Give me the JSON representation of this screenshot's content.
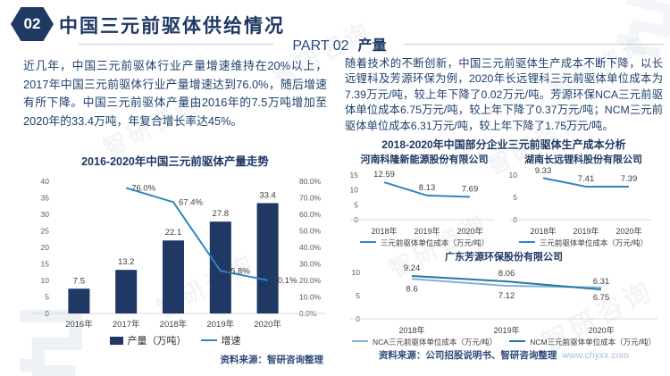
{
  "header": {
    "badge": "02",
    "title": "中国三元前驱体供给情况",
    "part_label": "PART 02",
    "part_topic": "产量"
  },
  "left": {
    "paragraph": "近几年，中国三元前驱体行业产量增速维持在20%以上，2017年中国三元前驱体行业产量增速达到76.0%，随后增速有所下降。中国三元前驱体产量由2016年的7.5万吨增加至2020年的33.4万吨，年复合增长率达45%。",
    "source": "资料来源：智研咨询整理"
  },
  "right": {
    "paragraph": "随着技术的不断创新，中国三元前驱体生产成本不断下降，以长远锂科及芳源环保为例，2020年长远锂科三元前驱体单位成本为7.39万元/吨，较上年下降了0.02万元/吨。芳源环保NCA三元前驱体单位成本6.75万元/吨，较上年下降了0.37万元/吨；NCM三元前驱体单位成本6.31万元/吨，较上年下降了1.75万元/吨。",
    "section_title": "2018-2020年中国部分企业三元前驱体生产成本分析",
    "source": "资料来源：公司招股说明书、智研咨询整理",
    "website": "www.chyxx.com"
  },
  "watermark": {
    "text": "智研咨询"
  },
  "colors": {
    "navy": "#1F3864",
    "line_blue": "#2E86C1",
    "nca_blue": "#7FB3D5",
    "ncm_teal": "#26789E",
    "divider": "#C9CED8",
    "url": "#A9BCD4"
  },
  "chart_data": [
    {
      "id": "production-trend",
      "type": "bar",
      "title": "2016-2020年中国三元前驱体产量走势",
      "categories": [
        "2016年",
        "2017年",
        "2018年",
        "2019年",
        "2020年"
      ],
      "series": [
        {
          "name": "产量（万吨）",
          "kind": "bar",
          "axis": "left",
          "color": "#1F3864",
          "values": [
            7.5,
            13.2,
            22.1,
            27.8,
            33.4
          ]
        },
        {
          "name": "增速",
          "kind": "line",
          "axis": "right",
          "color": "#2E86C1",
          "values": [
            null,
            76.0,
            67.4,
            25.8,
            20.1
          ],
          "point_labels": [
            null,
            "76.0%",
            "67.4%",
            "25.8%",
            "20.1%"
          ]
        }
      ],
      "left_axis": {
        "min": 0,
        "max": 40,
        "step": 5
      },
      "right_axis": {
        "min": 0,
        "max": 80,
        "step": 10,
        "suffix": "%"
      },
      "grid": false,
      "legend_position": "bottom"
    },
    {
      "id": "henan-kelong",
      "type": "line",
      "title": "河南科隆新能源股份有限公司",
      "categories": [
        "2018年",
        "2019年",
        "2020年"
      ],
      "series": [
        {
          "name": "三元前驱体单位成本（万元/吨）",
          "color": "#2E86C1",
          "values": [
            12.59,
            8.13,
            7.69
          ],
          "label_side": "above"
        }
      ],
      "y_axis": {
        "min": 0,
        "max": 15,
        "step": 5
      }
    },
    {
      "id": "hunan-changyuan",
      "type": "line",
      "title": "湖南长远锂科股份有限公司",
      "categories": [
        "2018年",
        "2019年",
        "2020年"
      ],
      "series": [
        {
          "name": "三元前驱体单位成本（万元/吨）",
          "color": "#2E86C1",
          "values": [
            9.33,
            7.41,
            7.39
          ],
          "label_side": "above"
        }
      ],
      "y_axis": {
        "min": 0,
        "max": 10,
        "step": 5
      }
    },
    {
      "id": "guangdong-fangyuan",
      "type": "line",
      "title": "广东芳源环保股份有限公司",
      "categories": [
        "2018年",
        "2019年",
        "2020年"
      ],
      "series": [
        {
          "name": "NCA三元前驱体单位成本（万元/吨）",
          "color": "#7FB3D5",
          "values": [
            8.6,
            7.12,
            6.75
          ],
          "label_side": "below"
        },
        {
          "name": "NCM三元前驱体单位成本（万元/吨）",
          "color": "#26789E",
          "values": [
            9.24,
            8.06,
            6.31
          ],
          "label_side": "above"
        }
      ],
      "y_axis": {
        "min": 0,
        "max": 10,
        "step": 5
      }
    }
  ]
}
